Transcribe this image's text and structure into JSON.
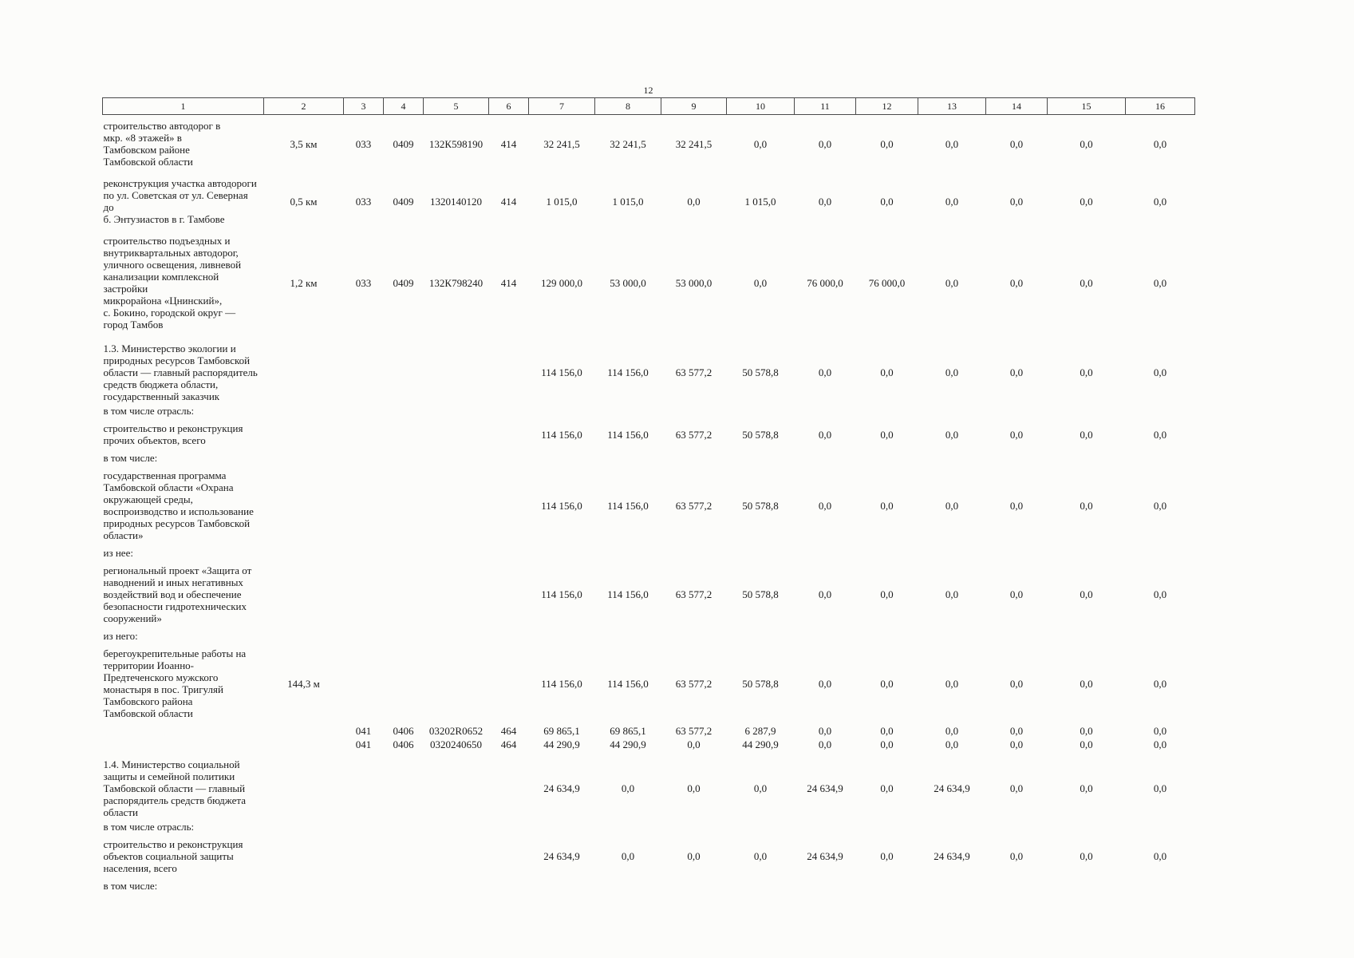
{
  "page_number": "12",
  "table": {
    "column_headers": [
      "1",
      "2",
      "3",
      "4",
      "5",
      "6",
      "7",
      "8",
      "9",
      "10",
      "11",
      "12",
      "13",
      "14",
      "15",
      "16"
    ],
    "rows": [
      {
        "type": "data",
        "cells": [
          "строительство автодорог в\nмкр. «8 этажей» в\nТамбовском районе\nТамбовской области",
          "3,5 км",
          "033",
          "0409",
          "132К598190",
          "414",
          "32 241,5",
          "32 241,5",
          "32 241,5",
          "0,0",
          "0,0",
          "0,0",
          "0,0",
          "0,0",
          "0,0",
          "0,0"
        ]
      },
      {
        "type": "data",
        "cells": [
          "реконструкция участка автодороги\nпо ул. Советская от ул. Северная до\nб. Энтузиастов в г. Тамбове",
          "0,5 км",
          "033",
          "0409",
          "1320140120",
          "414",
          "1 015,0",
          "1 015,0",
          "0,0",
          "1 015,0",
          "0,0",
          "0,0",
          "0,0",
          "0,0",
          "0,0",
          "0,0"
        ]
      },
      {
        "type": "data",
        "cells": [
          "строительство подъездных и\nвнутриквартальных автодорог,\nуличного освещения, ливневой\nканализации комплексной\nзастройки\nмикрорайона «Цнинский»,\nс. Бокино, городской округ —\nгород Тамбов",
          "1,2 км",
          "033",
          "0409",
          "132К798240",
          "414",
          "129 000,0",
          "53 000,0",
          "53 000,0",
          "0,0",
          "76 000,0",
          "76 000,0",
          "0,0",
          "0,0",
          "0,0",
          "0,0"
        ]
      },
      {
        "type": "section",
        "cells": [
          "1.3. Министерство экологии и\nприродных ресурсов Тамбовской\nобласти — главный распорядитель\nсредств бюджета области,\nгосударственный заказчик",
          "",
          "",
          "",
          "",
          "",
          "114 156,0",
          "114 156,0",
          "63 577,2",
          "50 578,8",
          "0,0",
          "0,0",
          "0,0",
          "0,0",
          "0,0",
          "0,0"
        ]
      },
      {
        "type": "label",
        "cells": [
          "в том числе отрасль:",
          "",
          "",
          "",
          "",
          "",
          "",
          "",
          "",
          "",
          "",
          "",
          "",
          "",
          "",
          ""
        ]
      },
      {
        "type": "data",
        "cells": [
          "строительство и реконструкция\nпрочих объектов, всего",
          "",
          "",
          "",
          "",
          "",
          "114 156,0",
          "114 156,0",
          "63 577,2",
          "50 578,8",
          "0,0",
          "0,0",
          "0,0",
          "0,0",
          "0,0",
          "0,0"
        ]
      },
      {
        "type": "label",
        "cells": [
          "в том числе:",
          "",
          "",
          "",
          "",
          "",
          "",
          "",
          "",
          "",
          "",
          "",
          "",
          "",
          "",
          ""
        ]
      },
      {
        "type": "data",
        "cells": [
          "государственная программа\nТамбовской области «Охрана\nокружающей среды,\nвоспроизводство и использование\nприродных ресурсов Тамбовской\nобласти»",
          "",
          "",
          "",
          "",
          "",
          "114 156,0",
          "114 156,0",
          "63 577,2",
          "50 578,8",
          "0,0",
          "0,0",
          "0,0",
          "0,0",
          "0,0",
          "0,0"
        ]
      },
      {
        "type": "label",
        "cells": [
          "из нее:",
          "",
          "",
          "",
          "",
          "",
          "",
          "",
          "",
          "",
          "",
          "",
          "",
          "",
          "",
          ""
        ]
      },
      {
        "type": "data",
        "cells": [
          "региональный проект «Защита от\nнаводнений и иных негативных\nвоздействий вод и обеспечение\nбезопасности гидротехнических\nсооружений»",
          "",
          "",
          "",
          "",
          "",
          "114 156,0",
          "114 156,0",
          "63 577,2",
          "50 578,8",
          "0,0",
          "0,0",
          "0,0",
          "0,0",
          "0,0",
          "0,0"
        ]
      },
      {
        "type": "label",
        "cells": [
          "из него:",
          "",
          "",
          "",
          "",
          "",
          "",
          "",
          "",
          "",
          "",
          "",
          "",
          "",
          "",
          ""
        ]
      },
      {
        "type": "data",
        "cells": [
          "берегоукрепительные работы на\nтерритории Иоанно-\nПредтеченского мужского\nмонастыря в пос. Тригуляй\nТамбовского района\nТамбовской области",
          "144,3 м",
          "",
          "",
          "",
          "",
          "114 156,0",
          "114 156,0",
          "63 577,2",
          "50 578,8",
          "0,0",
          "0,0",
          "0,0",
          "0,0",
          "0,0",
          "0,0"
        ]
      },
      {
        "type": "code",
        "cells": [
          "",
          "",
          "041",
          "0406",
          "03202R0652",
          "464",
          "69 865,1",
          "69 865,1",
          "63 577,2",
          "6 287,9",
          "0,0",
          "0,0",
          "0,0",
          "0,0",
          "0,0",
          "0,0"
        ]
      },
      {
        "type": "code",
        "cells": [
          "",
          "",
          "041",
          "0406",
          "0320240650",
          "464",
          "44 290,9",
          "44 290,9",
          "0,0",
          "44 290,9",
          "0,0",
          "0,0",
          "0,0",
          "0,0",
          "0,0",
          "0,0"
        ]
      },
      {
        "type": "section",
        "cells": [
          "1.4. Министерство социальной\nзащиты и семейной политики\nТамбовской области — главный\nраспорядитель средств бюджета\nобласти",
          "",
          "",
          "",
          "",
          "",
          "24 634,9",
          "0,0",
          "0,0",
          "0,0",
          "24 634,9",
          "0,0",
          "24 634,9",
          "0,0",
          "0,0",
          "0,0"
        ]
      },
      {
        "type": "label",
        "cells": [
          "в том числе отрасль:",
          "",
          "",
          "",
          "",
          "",
          "",
          "",
          "",
          "",
          "",
          "",
          "",
          "",
          "",
          ""
        ]
      },
      {
        "type": "data",
        "cells": [
          "строительство и реконструкция\nобъектов социальной защиты\nнаселения, всего",
          "",
          "",
          "",
          "",
          "",
          "24 634,9",
          "0,0",
          "0,0",
          "0,0",
          "24 634,9",
          "0,0",
          "24 634,9",
          "0,0",
          "0,0",
          "0,0"
        ]
      },
      {
        "type": "label",
        "cells": [
          "в том числе:",
          "",
          "",
          "",
          "",
          "",
          "",
          "",
          "",
          "",
          "",
          "",
          "",
          "",
          "",
          ""
        ]
      }
    ]
  }
}
